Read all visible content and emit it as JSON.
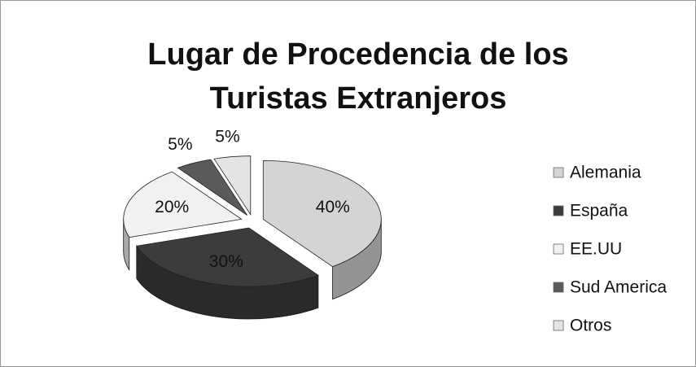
{
  "chart_data": {
    "type": "pie",
    "title": "Lugar de Procedencia de los Turistas Extranjeros",
    "categories": [
      "Alemania",
      "España",
      "EE.UU",
      "Sud America",
      "Otros"
    ],
    "values": [
      40,
      30,
      20,
      5,
      5
    ],
    "value_labels": [
      "40%",
      "30%",
      "20%",
      "5%",
      "5%"
    ],
    "colors": [
      "#d4d4d4",
      "#3c3c3c",
      "#f1f1f1",
      "#5a5a5a",
      "#e4e4e4"
    ],
    "legend": "right"
  }
}
